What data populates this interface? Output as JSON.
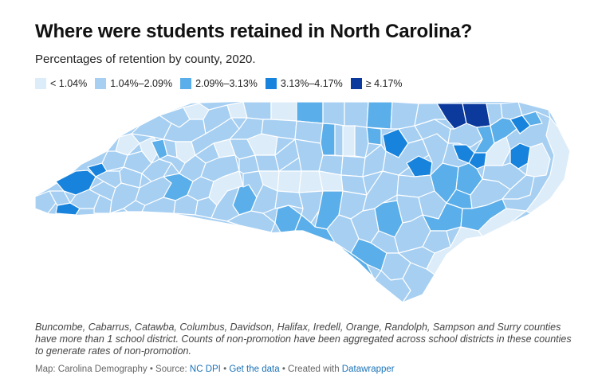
{
  "title": "Where were students retained in North Carolina?",
  "subtitle": "Percentages of retention by county, 2020.",
  "legend": [
    {
      "label": "< 1.04%",
      "color": "#dcecf9"
    },
    {
      "label": "1.04%–2.09%",
      "color": "#a6cff2"
    },
    {
      "label": "2.09%–3.13%",
      "color": "#5aaee9"
    },
    {
      "label": "3.13%–4.17%",
      "color": "#1783dc"
    },
    {
      "label": "≥ 4.17%",
      "color": "#0b3a9c"
    }
  ],
  "notes": "Buncombe, Cabarrus, Catawba, Columbus, Davidson, Halifax, Iredell, Orange, Randolph, Sampson and Surry counties have more than 1 school district. Counts of non-promotion have been aggregated across school districts in these counties to generate rates of non-promotion.",
  "footer": {
    "map_credit": "Map: Carolina Demography",
    "source_prefix": "• Source:",
    "source_link": "NC DPI",
    "separator": "•",
    "data_link": "Get the data",
    "created_prefix": "• Created with",
    "created_link": "Datawrapper"
  }
}
